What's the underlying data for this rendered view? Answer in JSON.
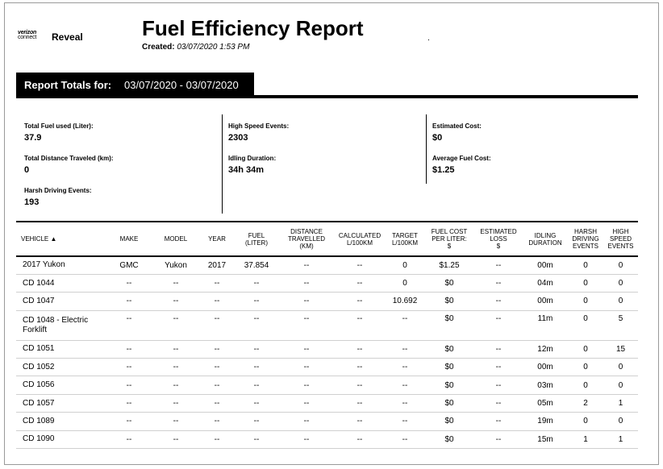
{
  "brand": {
    "line1": "verizon",
    "line2": "connect",
    "product": "Reveal"
  },
  "report": {
    "title": "Fuel Efficiency Report",
    "created_label": "Created:",
    "created_value": "03/07/2020 1:53 PM"
  },
  "totals": {
    "label": "Report Totals for:",
    "range": "03/07/2020 - 03/07/2020",
    "stats": [
      {
        "label": "Total Fuel used (Liter):",
        "value": "37.9"
      },
      {
        "label": "Total Distance Traveled (km):",
        "value": "0"
      },
      {
        "label": "Harsh Driving Events:",
        "value": "193"
      },
      {
        "label": "High Speed Events:",
        "value": "2303"
      },
      {
        "label": "Idling Duration:",
        "value": "34h 34m"
      },
      {
        "label": "Estimated Cost:",
        "value": "$0"
      },
      {
        "label": "Average Fuel Cost:",
        "value": "$1.25"
      }
    ]
  },
  "table": {
    "columns": [
      [
        "VEHICLE ▲"
      ],
      [
        "MAKE"
      ],
      [
        "MODEL"
      ],
      [
        "YEAR"
      ],
      [
        "FUEL",
        "(LITER)"
      ],
      [
        "DISTANCE",
        "TRAVELLED",
        "(KM)"
      ],
      [
        "CALCULATED",
        "L/100KM"
      ],
      [
        "TARGET",
        "L/100KM"
      ],
      [
        "FUEL COST",
        "PER LITER:",
        "$"
      ],
      [
        "ESTIMATED",
        "LOSS",
        "$"
      ],
      [
        "IDLING",
        "DURATION"
      ],
      [
        "HARSH",
        "DRIVING",
        "EVENTS"
      ],
      [
        "HIGH",
        "SPEED",
        "EVENTS"
      ]
    ],
    "rows": [
      [
        "2017 Yukon",
        "GMC",
        "Yukon",
        "2017",
        "37.854",
        "--",
        "--",
        "0",
        "$1.25",
        "--",
        "00m",
        "0",
        "0"
      ],
      [
        "CD 1044",
        "--",
        "--",
        "--",
        "--",
        "--",
        "--",
        "0",
        "$0",
        "--",
        "04m",
        "0",
        "0"
      ],
      [
        "CD 1047",
        "--",
        "--",
        "--",
        "--",
        "--",
        "--",
        "10.692",
        "$0",
        "--",
        "00m",
        "0",
        "0"
      ],
      [
        "CD 1048 - Electric Forklift",
        "--",
        "--",
        "--",
        "--",
        "--",
        "--",
        "--",
        "$0",
        "--",
        "11m",
        "0",
        "5"
      ],
      [
        "CD 1051",
        "--",
        "--",
        "--",
        "--",
        "--",
        "--",
        "--",
        "$0",
        "--",
        "12m",
        "0",
        "15"
      ],
      [
        "CD 1052",
        "--",
        "--",
        "--",
        "--",
        "--",
        "--",
        "--",
        "$0",
        "--",
        "00m",
        "0",
        "0"
      ],
      [
        "CD 1056",
        "--",
        "--",
        "--",
        "--",
        "--",
        "--",
        "--",
        "$0",
        "--",
        "03m",
        "0",
        "0"
      ],
      [
        "CD 1057",
        "--",
        "--",
        "--",
        "--",
        "--",
        "--",
        "--",
        "$0",
        "--",
        "05m",
        "2",
        "1"
      ],
      [
        "CD 1089",
        "--",
        "--",
        "--",
        "--",
        "--",
        "--",
        "--",
        "$0",
        "--",
        "19m",
        "0",
        "0"
      ],
      [
        "CD 1090",
        "--",
        "--",
        "--",
        "--",
        "--",
        "--",
        "--",
        "$0",
        "--",
        "15m",
        "1",
        "1"
      ]
    ]
  }
}
